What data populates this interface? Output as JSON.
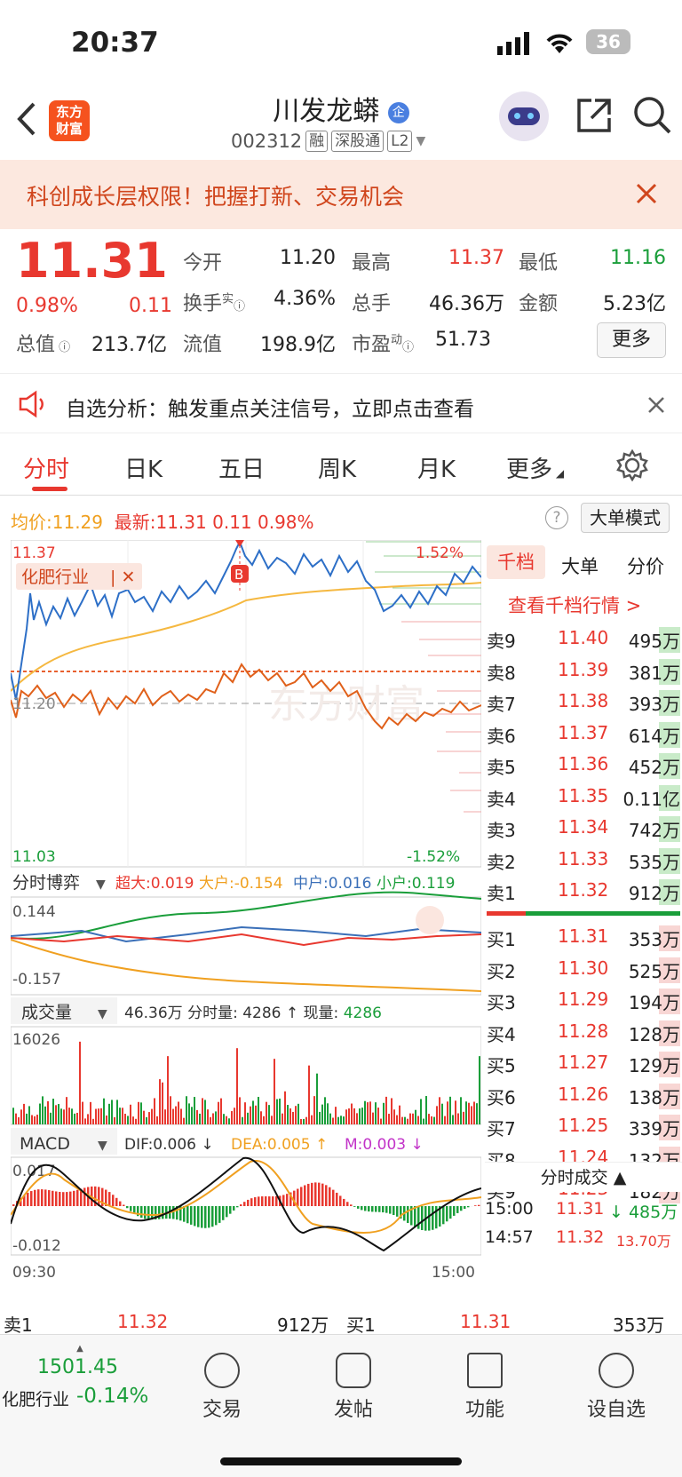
{
  "status": {
    "time": "20:37",
    "battery": "36"
  },
  "header": {
    "title": "川发龙蟒",
    "code": "002312",
    "tags": [
      "融",
      "深股通",
      "L2"
    ],
    "logo_lines": [
      "东方",
      "财富"
    ],
    "badge": "企"
  },
  "banner": {
    "text": "科创成长层权限！把握打新、交易机会"
  },
  "quote": {
    "price": "11.31",
    "change_pct": "0.98%",
    "change": "0.11",
    "open_label": "今开",
    "open": "11.20",
    "high_label": "最高",
    "high": "11.37",
    "low_label": "最低",
    "low": "11.16",
    "turnover_label": "换手",
    "turnover_sup": "实",
    "turnover": "4.36%",
    "volume_label": "总手",
    "volume": "46.36万",
    "amount_label": "金额",
    "amount": "5.23亿",
    "mktcap_label": "总值",
    "mktcap": "213.7亿",
    "float_label": "流值",
    "float": "198.9亿",
    "pe_label": "市盈",
    "pe_sup": "动",
    "pe": "51.73",
    "more": "更多"
  },
  "alert": {
    "text": "自选分析：触发重点关注信号，立即点击查看"
  },
  "tabs": [
    "分时",
    "日K",
    "五日",
    "周K",
    "月K",
    "更多"
  ],
  "chart_header": {
    "avg_label": "均价:",
    "avg": "11.29",
    "latest_label": "最新:",
    "latest": "11.31",
    "chg": "0.11",
    "pct": "0.98%",
    "big_order_mode": "大单模式"
  },
  "price_chart": {
    "top": "11.37",
    "bottom": "11.03",
    "mid": "11.20",
    "top_pct": "1.52%",
    "bottom_pct": "-1.52%",
    "industry": "化肥行业",
    "watermark": "东方财富",
    "marker": "B"
  },
  "game": {
    "label": "分时博弈",
    "super_label": "超大:",
    "super": "0.019",
    "large_label": "大户:",
    "large": "-0.154",
    "mid_label": "中户:",
    "mid": "0.016",
    "small_label": "小户:",
    "small": "0.119",
    "top": "0.144",
    "bottom": "-0.157"
  },
  "volume": {
    "label": "成交量",
    "total": "46.36万",
    "tick_label": "分时量:",
    "tick": "4286",
    "now_label": "现量:",
    "now": "4286",
    "max": "16026"
  },
  "macd": {
    "label": "MACD",
    "dif_label": "DIF:",
    "dif": "0.006",
    "dea_label": "DEA:",
    "dea": "0.005",
    "m_label": "M:",
    "m": "0.003",
    "top": "0.017",
    "bottom": "-0.012",
    "start_time": "09:30",
    "end_time": "15:00"
  },
  "orderbook": {
    "tabs": [
      "千档",
      "大单",
      "分价"
    ],
    "link": "查看千档行情 >",
    "asks": [
      {
        "label": "卖9",
        "price": "11.40",
        "vol": "495万"
      },
      {
        "label": "卖8",
        "price": "11.39",
        "vol": "381万"
      },
      {
        "label": "卖7",
        "price": "11.38",
        "vol": "393万"
      },
      {
        "label": "卖6",
        "price": "11.37",
        "vol": "614万"
      },
      {
        "label": "卖5",
        "price": "11.36",
        "vol": "452万"
      },
      {
        "label": "卖4",
        "price": "11.35",
        "vol": "0.11亿"
      },
      {
        "label": "卖3",
        "price": "11.34",
        "vol": "742万"
      },
      {
        "label": "卖2",
        "price": "11.33",
        "vol": "535万"
      },
      {
        "label": "卖1",
        "price": "11.32",
        "vol": "912万"
      }
    ],
    "bids": [
      {
        "label": "买1",
        "price": "11.31",
        "vol": "353万"
      },
      {
        "label": "买2",
        "price": "11.30",
        "vol": "525万"
      },
      {
        "label": "买3",
        "price": "11.29",
        "vol": "194万"
      },
      {
        "label": "买4",
        "price": "11.28",
        "vol": "128万"
      },
      {
        "label": "买5",
        "price": "11.27",
        "vol": "129万"
      },
      {
        "label": "买6",
        "price": "11.26",
        "vol": "138万"
      },
      {
        "label": "买7",
        "price": "11.25",
        "vol": "339万"
      },
      {
        "label": "买8",
        "price": "11.24",
        "vol": "132万"
      },
      {
        "label": "买9",
        "price": "11.23",
        "vol": "182万"
      }
    ],
    "trades_label": "分时成交",
    "trades": [
      {
        "time": "15:00",
        "price": "11.31",
        "vol": "485万"
      },
      {
        "time": "14:57",
        "price": "11.32",
        "vol": "13.70万"
      }
    ]
  },
  "ticker": {
    "sell_label": "卖1",
    "sell_price": "11.32",
    "sell_vol": "912万",
    "buy_label": "买1",
    "buy_price": "11.31",
    "buy_vol": "353万"
  },
  "bottom": {
    "index_value": "1501.45",
    "index_name": "化肥行业",
    "index_pct": "-0.14%",
    "nav": [
      "交易",
      "发帖",
      "功能",
      "设自选"
    ]
  }
}
